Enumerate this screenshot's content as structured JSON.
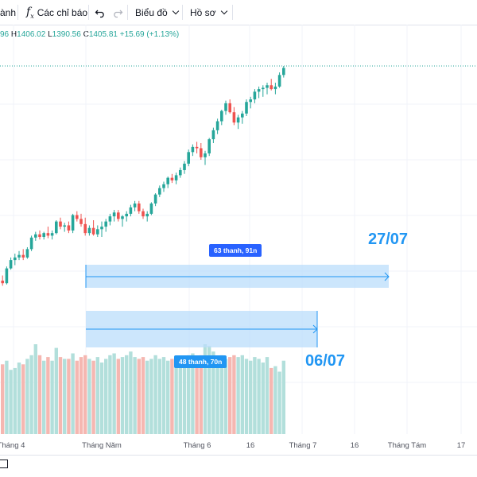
{
  "toolbar": {
    "left_fragment": "ành",
    "indicators_label": "Các chỉ báo",
    "chart_type_label": "Biểu đồ",
    "profile_label": "Hồ sơ"
  },
  "ohlc": {
    "open_fragment": "96",
    "h_key": "H",
    "h_val": "1406.02",
    "l_key": "L",
    "l_val": "1390.56",
    "c_key": "C",
    "c_val": "1405.81",
    "change": "+15.69 (+1.13%)"
  },
  "colors": {
    "up": "#26a69a",
    "down": "#ef5350",
    "vol_up": "#b2dfdb",
    "vol_down": "#f5b7b1",
    "accent": "#2196f3"
  },
  "measures": [
    {
      "label": "63 thanh, 91n",
      "date": "27/07"
    },
    {
      "label": "48 thanh, 70n",
      "date": "06/07"
    }
  ],
  "x_axis": {
    "ticks": [
      "Tháng 4",
      "Tháng Năm",
      "Tháng 6",
      "16",
      "Tháng 7",
      "16",
      "Tháng Tám",
      "17"
    ]
  },
  "chart_data": {
    "type": "candlestick",
    "candles": [
      [
        1226,
        1234,
        1218,
        1222
      ],
      [
        1222,
        1248,
        1220,
        1245
      ],
      [
        1245,
        1262,
        1243,
        1258
      ],
      [
        1258,
        1268,
        1250,
        1262
      ],
      [
        1262,
        1272,
        1258,
        1266
      ],
      [
        1266,
        1275,
        1258,
        1262
      ],
      [
        1262,
        1278,
        1260,
        1275
      ],
      [
        1275,
        1296,
        1272,
        1293
      ],
      [
        1293,
        1302,
        1288,
        1298
      ],
      [
        1298,
        1304,
        1290,
        1294
      ],
      [
        1294,
        1302,
        1290,
        1300
      ],
      [
        1300,
        1310,
        1292,
        1296
      ],
      [
        1296,
        1304,
        1290,
        1300
      ],
      [
        1300,
        1320,
        1298,
        1318
      ],
      [
        1318,
        1324,
        1306,
        1310
      ],
      [
        1310,
        1316,
        1302,
        1312
      ],
      [
        1312,
        1318,
        1300,
        1304
      ],
      [
        1304,
        1330,
        1300,
        1328
      ],
      [
        1328,
        1334,
        1318,
        1322
      ],
      [
        1322,
        1330,
        1310,
        1314
      ],
      [
        1314,
        1324,
        1296,
        1300
      ],
      [
        1300,
        1312,
        1296,
        1308
      ],
      [
        1308,
        1320,
        1296,
        1298
      ],
      [
        1298,
        1312,
        1294,
        1306
      ],
      [
        1306,
        1318,
        1294,
        1310
      ],
      [
        1310,
        1322,
        1302,
        1318
      ],
      [
        1318,
        1330,
        1312,
        1326
      ],
      [
        1326,
        1336,
        1318,
        1332
      ],
      [
        1332,
        1336,
        1318,
        1322
      ],
      [
        1322,
        1328,
        1310,
        1326
      ],
      [
        1326,
        1334,
        1318,
        1330
      ],
      [
        1330,
        1344,
        1326,
        1340
      ],
      [
        1340,
        1350,
        1334,
        1346
      ],
      [
        1346,
        1350,
        1330,
        1334
      ],
      [
        1334,
        1338,
        1322,
        1326
      ],
      [
        1326,
        1334,
        1318,
        1330
      ],
      [
        1330,
        1348,
        1328,
        1346
      ],
      [
        1346,
        1362,
        1342,
        1360
      ],
      [
        1360,
        1374,
        1356,
        1370
      ],
      [
        1370,
        1380,
        1364,
        1376
      ],
      [
        1376,
        1388,
        1370,
        1386
      ],
      [
        1386,
        1392,
        1378,
        1382
      ],
      [
        1382,
        1394,
        1376,
        1390
      ],
      [
        1390,
        1402,
        1386,
        1398
      ],
      [
        1398,
        1412,
        1392,
        1408
      ],
      [
        1408,
        1430,
        1404,
        1426
      ],
      [
        1426,
        1438,
        1420,
        1434
      ],
      [
        1434,
        1442,
        1424,
        1432
      ],
      [
        1432,
        1440,
        1414,
        1418
      ],
      [
        1418,
        1428,
        1406,
        1424
      ],
      [
        1424,
        1448,
        1420,
        1446
      ],
      [
        1446,
        1464,
        1440,
        1460
      ],
      [
        1460,
        1478,
        1454,
        1474
      ],
      [
        1474,
        1492,
        1468,
        1490
      ],
      [
        1490,
        1506,
        1484,
        1502
      ],
      [
        1502,
        1508,
        1486,
        1488
      ],
      [
        1488,
        1496,
        1468,
        1472
      ],
      [
        1472,
        1484,
        1462,
        1480
      ],
      [
        1480,
        1490,
        1470,
        1486
      ],
      [
        1486,
        1508,
        1482,
        1504
      ],
      [
        1504,
        1512,
        1494,
        1508
      ],
      [
        1508,
        1524,
        1502,
        1520
      ],
      [
        1520,
        1528,
        1510,
        1524
      ],
      [
        1524,
        1530,
        1512,
        1526
      ],
      [
        1526,
        1534,
        1516,
        1530
      ],
      [
        1530,
        1540,
        1522,
        1524
      ],
      [
        1524,
        1534,
        1516,
        1528
      ],
      [
        1528,
        1550,
        1526,
        1546
      ],
      [
        1546,
        1560,
        1542,
        1557
      ]
    ],
    "volumes": [
      0.78,
      0.82,
      0.72,
      0.74,
      0.8,
      0.78,
      0.84,
      0.88,
      1.0,
      0.88,
      0.82,
      0.86,
      0.82,
      0.96,
      0.86,
      0.84,
      0.84,
      0.9,
      0.82,
      0.86,
      0.88,
      0.84,
      0.82,
      0.86,
      0.8,
      0.84,
      0.88,
      0.9,
      0.84,
      0.86,
      0.88,
      0.92,
      0.86,
      0.84,
      0.86,
      0.82,
      0.84,
      0.88,
      0.84,
      0.86,
      0.82,
      0.84,
      0.86,
      0.84,
      0.82,
      0.88,
      0.9,
      0.86,
      0.88,
      1.0,
      0.98,
      0.92,
      0.86,
      0.88,
      0.84,
      0.86,
      0.88,
      0.86,
      0.88,
      0.84,
      0.82,
      0.86,
      0.84,
      0.8,
      0.86,
      0.74,
      0.76,
      0.7,
      0.82
    ]
  }
}
